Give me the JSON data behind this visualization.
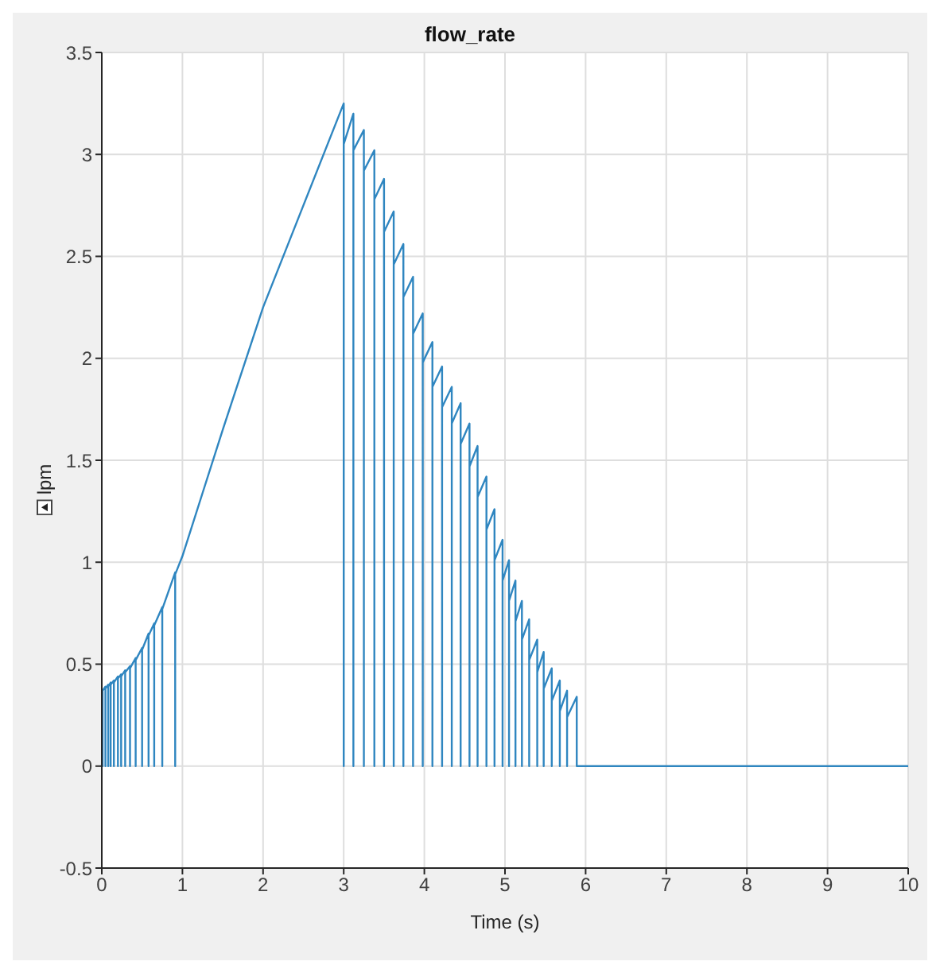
{
  "chart_data": {
    "type": "line",
    "title": "flow_rate",
    "xlabel": "Time (s)",
    "ylabel": "lpm",
    "grid": true,
    "xlim": [
      0,
      10
    ],
    "xticks": [
      0,
      1,
      2,
      3,
      4,
      5,
      6,
      7,
      8,
      9,
      10
    ],
    "ylim": [
      -0.5,
      3.5
    ],
    "yticks": [
      -0.5,
      0,
      0.5,
      1,
      1.5,
      2,
      2.5,
      3,
      3.5
    ],
    "marker": "none",
    "line_style": "solid",
    "series": [
      {
        "color": "#2f86c0",
        "x": [
          0,
          0.01,
          0.01,
          0.045,
          0.045,
          0.045,
          0.08,
          0.08,
          0.08,
          0.11,
          0.11,
          0.11,
          0.15,
          0.15,
          0.15,
          0.2,
          0.2,
          0.2,
          0.24,
          0.24,
          0.24,
          0.29,
          0.29,
          0.29,
          0.35,
          0.35,
          0.35,
          0.42,
          0.42,
          0.42,
          0.5,
          0.5,
          0.5,
          0.58,
          0.58,
          0.58,
          0.65,
          0.65,
          0.65,
          0.75,
          0.75,
          0.75,
          0.91,
          0.91,
          0.91,
          1.0,
          1.5,
          2.0,
          2.5,
          3.0,
          3.0,
          3.0,
          3.12,
          3.12,
          3.12,
          3.25,
          3.25,
          3.25,
          3.38,
          3.38,
          3.38,
          3.5,
          3.5,
          3.5,
          3.62,
          3.62,
          3.62,
          3.74,
          3.74,
          3.74,
          3.86,
          3.86,
          3.86,
          3.98,
          3.98,
          3.98,
          4.1,
          4.1,
          4.1,
          4.22,
          4.22,
          4.22,
          4.34,
          4.34,
          4.34,
          4.45,
          4.45,
          4.45,
          4.56,
          4.56,
          4.56,
          4.66,
          4.66,
          4.66,
          4.77,
          4.77,
          4.77,
          4.87,
          4.87,
          4.87,
          4.97,
          4.97,
          4.97,
          5.05,
          5.05,
          5.05,
          5.13,
          5.13,
          5.13,
          5.21,
          5.21,
          5.21,
          5.3,
          5.3,
          5.3,
          5.4,
          5.4,
          5.4,
          5.48,
          5.48,
          5.48,
          5.58,
          5.58,
          5.58,
          5.68,
          5.68,
          5.68,
          5.77,
          5.77,
          5.77,
          5.89,
          5.89,
          10
        ],
        "values": [
          0,
          0,
          0.37,
          0.39,
          0,
          0.38,
          0.4,
          0,
          0.39,
          0.41,
          0,
          0.4,
          0.42,
          0,
          0.41,
          0.44,
          0,
          0.43,
          0.45,
          0,
          0.44,
          0.47,
          0,
          0.46,
          0.49,
          0,
          0.48,
          0.53,
          0,
          0.52,
          0.58,
          0,
          0.57,
          0.65,
          0,
          0.64,
          0.7,
          0,
          0.69,
          0.78,
          0,
          0.77,
          0.95,
          0,
          0.94,
          1.03,
          1.65,
          2.25,
          2.75,
          3.25,
          0,
          3.05,
          3.2,
          0,
          3.02,
          3.12,
          0,
          2.92,
          3.02,
          0,
          2.78,
          2.88,
          0,
          2.62,
          2.72,
          0,
          2.46,
          2.56,
          0,
          2.3,
          2.4,
          0,
          2.12,
          2.22,
          0,
          1.98,
          2.08,
          0,
          1.86,
          1.96,
          0,
          1.76,
          1.86,
          0,
          1.68,
          1.78,
          0,
          1.58,
          1.68,
          0,
          1.47,
          1.57,
          0,
          1.32,
          1.42,
          0,
          1.16,
          1.26,
          0,
          1.01,
          1.11,
          0,
          0.91,
          1.01,
          0,
          0.81,
          0.91,
          0,
          0.71,
          0.81,
          0,
          0.62,
          0.72,
          0,
          0.52,
          0.62,
          0,
          0.46,
          0.56,
          0,
          0.38,
          0.48,
          0,
          0.32,
          0.42,
          0,
          0.27,
          0.37,
          0,
          0.24,
          0.34,
          0,
          0
        ]
      }
    ]
  }
}
